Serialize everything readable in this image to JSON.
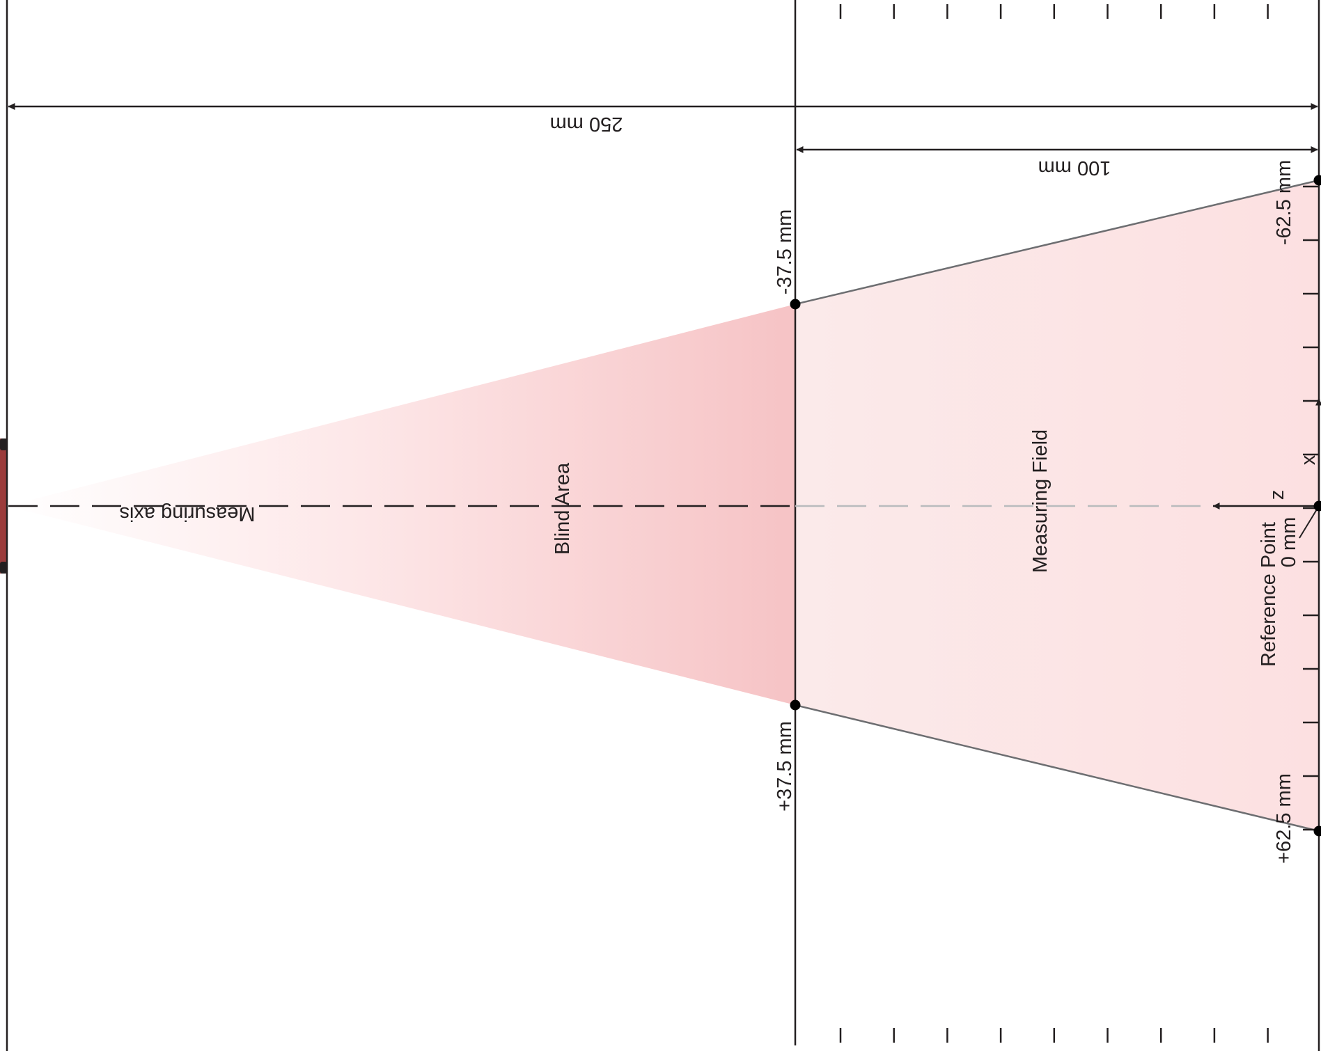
{
  "labels": {
    "total_range": "250 mm",
    "measuring_range": "100 mm",
    "near_top": "-37.5 mm",
    "near_bottom": "+37.5 mm",
    "far_top": "-62.5 mm",
    "far_bottom": "+62.5 mm",
    "measuring_axis": "Measuring axis",
    "blind_area": "Blind Area",
    "measuring_field": "Measuring Field",
    "reference_point": "Reference Point",
    "reference_value": "0 mm",
    "axis_z": "z",
    "axis_x": "x"
  },
  "colors": {
    "line": "#231f20",
    "boundary": "#6d6e71",
    "blind_area_fill": "#f4b6b8",
    "measuring_field_fill": "#fce4e4",
    "sensor": "#9b3b3b",
    "dashed_field": "#b9bbbd"
  }
}
